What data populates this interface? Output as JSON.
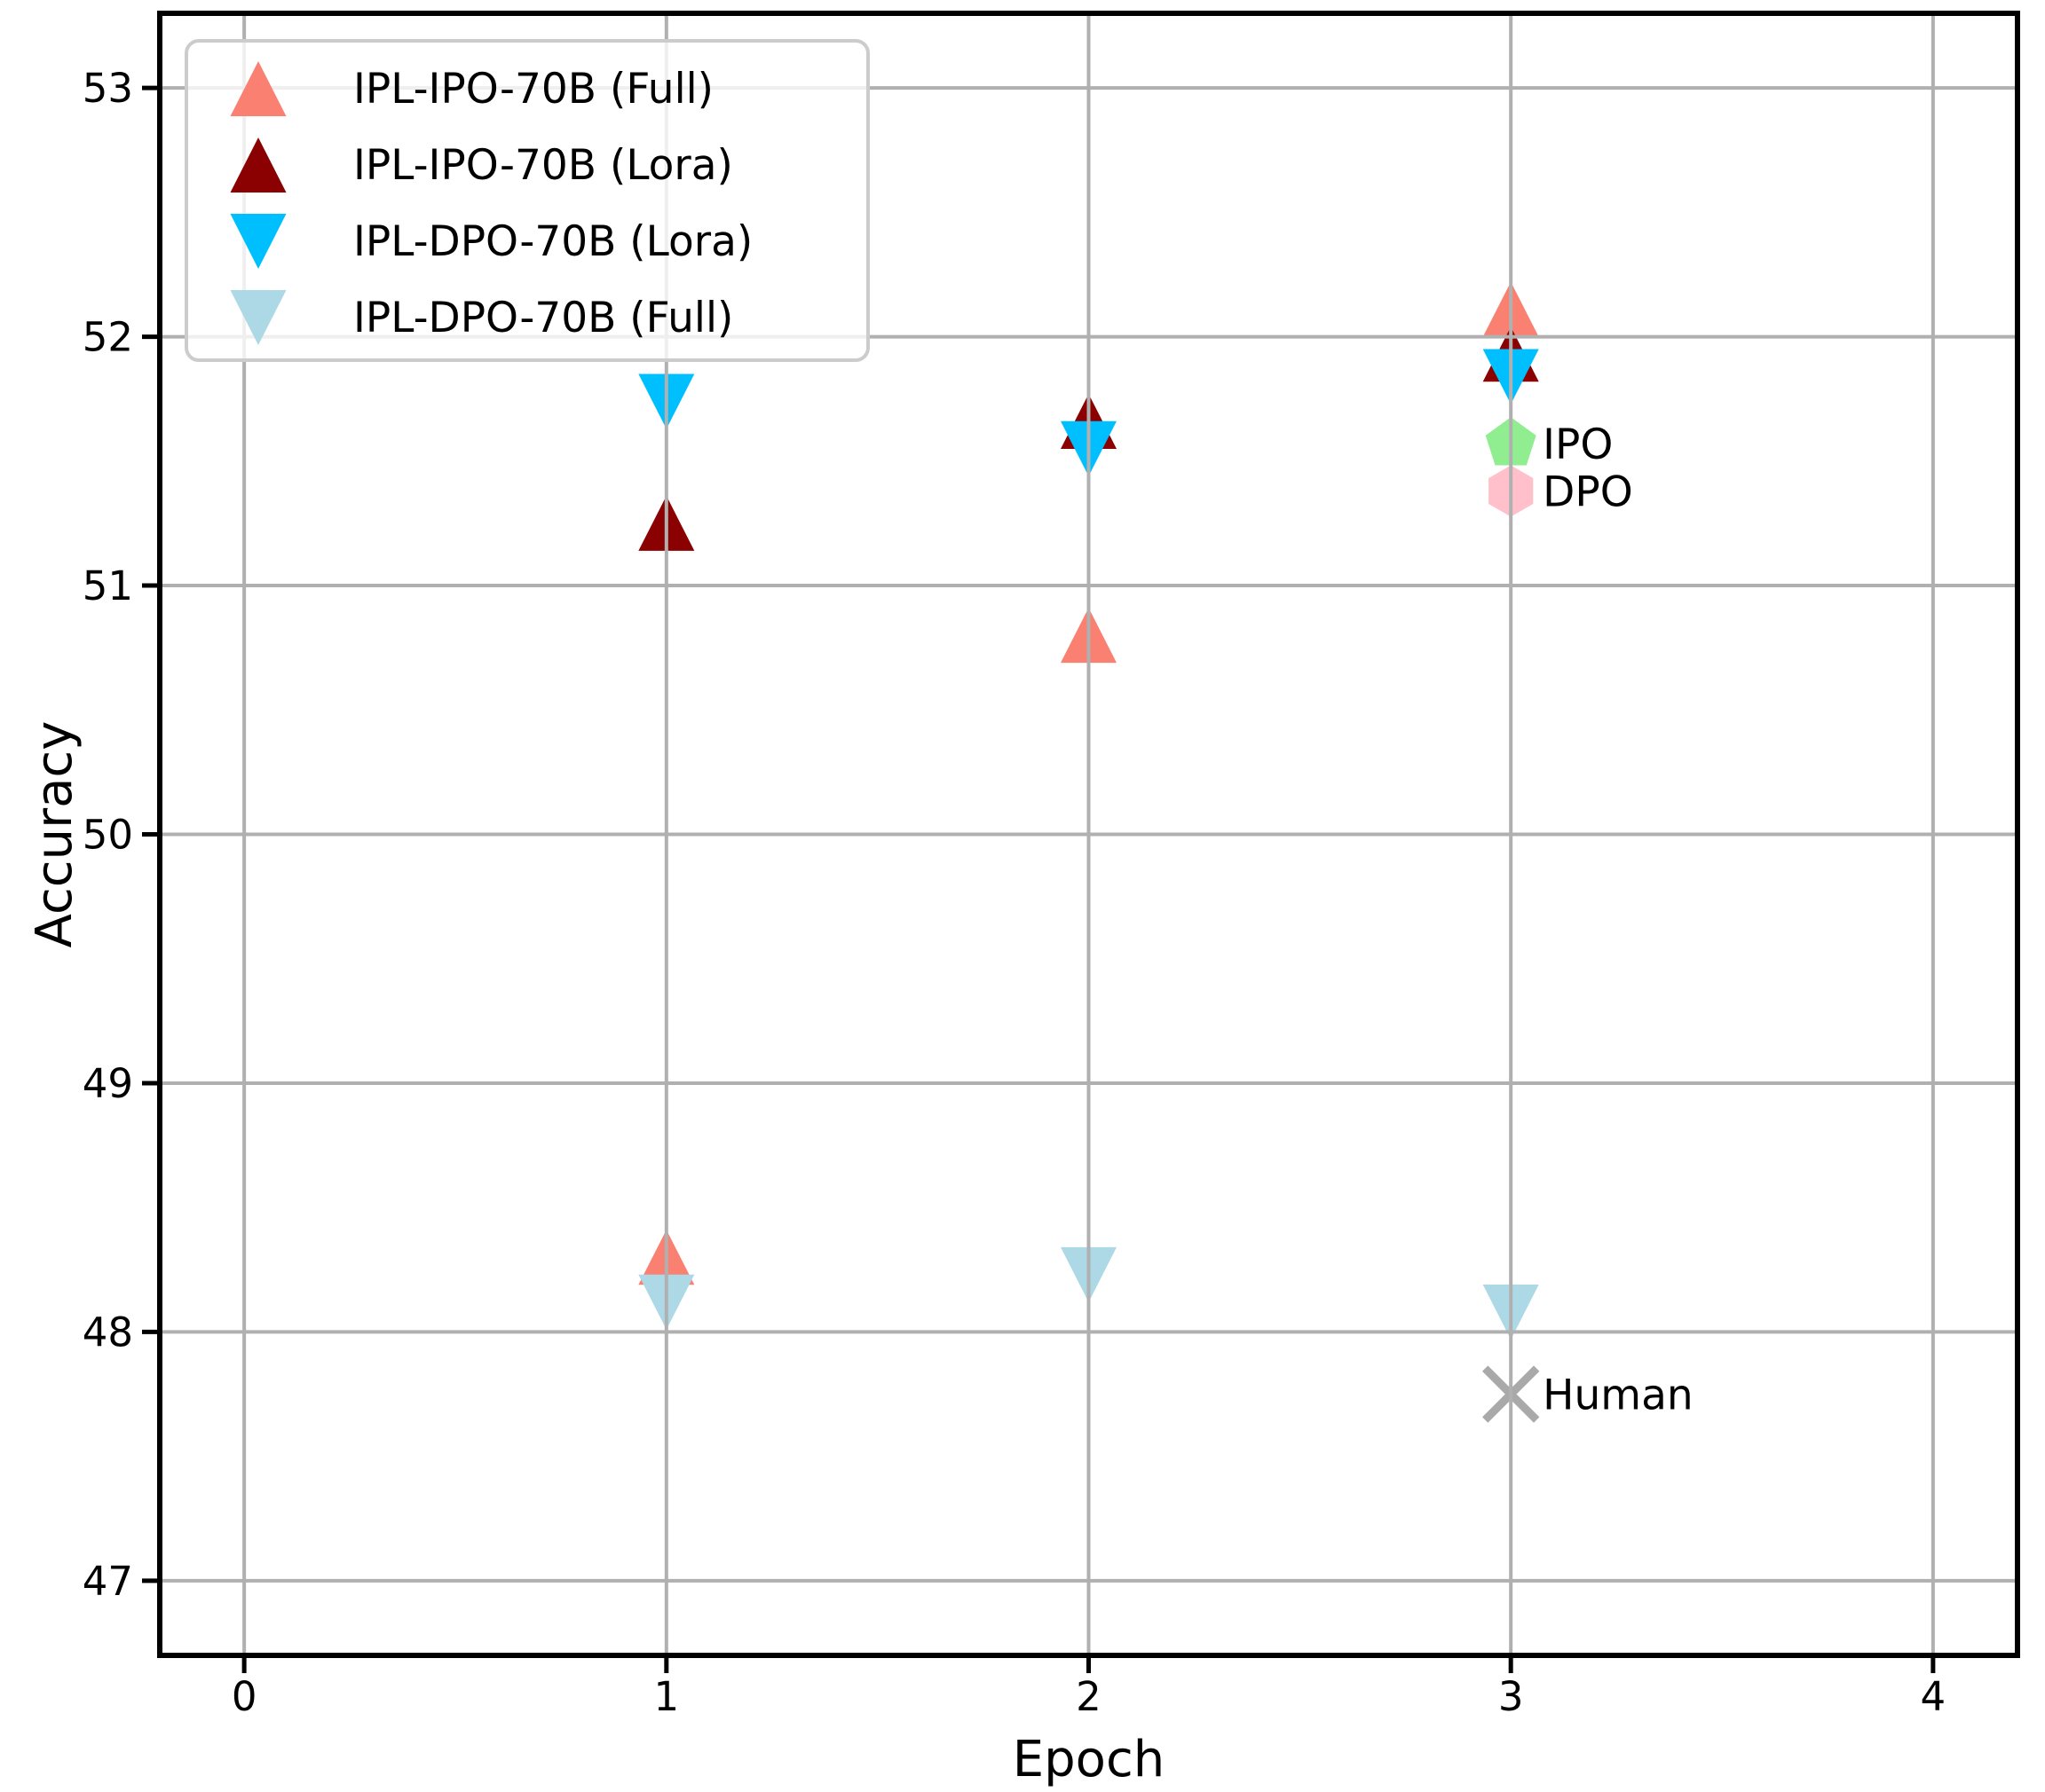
{
  "figure": {
    "background": "#ffffff"
  },
  "chart_data": {
    "type": "scatter",
    "title": "",
    "xlabel": "Epoch",
    "ylabel": "Accuracy",
    "xlim": [
      -0.2,
      4.2
    ],
    "ylim": [
      46.7,
      53.3
    ],
    "xticks": [
      "0",
      "1",
      "2",
      "3",
      "4"
    ],
    "yticks": [
      "47",
      "48",
      "49",
      "50",
      "51",
      "52",
      "53"
    ],
    "grid": true,
    "grid_color": "#b0b0b0",
    "spine_color": "#000000",
    "legend_position": "upper-left",
    "series": [
      {
        "name": "IPL-IPO-70B (Full)",
        "color": "#FA8072",
        "marker": "triangle-up",
        "x": [
          1,
          2,
          3
        ],
        "y": [
          48.3,
          50.8,
          52.11
        ]
      },
      {
        "name": "IPL-IPO-70B (Lora)",
        "color": "#8B0000",
        "marker": "triangle-up",
        "x": [
          1,
          2,
          3
        ],
        "y": [
          51.25,
          51.66,
          51.93
        ]
      },
      {
        "name": "IPL-DPO-70B (Lora)",
        "color": "#00BFFF",
        "marker": "triangle-down",
        "x": [
          1,
          2,
          3
        ],
        "y": [
          51.74,
          51.55,
          51.84
        ]
      },
      {
        "name": "IPL-DPO-70B (Full)",
        "color": "#ADD8E6",
        "marker": "triangle-down",
        "x": [
          1,
          2,
          3
        ],
        "y": [
          48.12,
          48.23,
          48.08
        ]
      }
    ],
    "reference_points": [
      {
        "label": "IPO",
        "marker": "pentagon",
        "color": "#90EE90",
        "x": 3,
        "y": 51.57
      },
      {
        "label": "DPO",
        "marker": "hexagon",
        "color": "#FFC0CB",
        "x": 3,
        "y": 51.38
      },
      {
        "label": "Human",
        "marker": "x",
        "color": "#A9A9A9",
        "x": 3,
        "y": 47.75
      }
    ]
  }
}
